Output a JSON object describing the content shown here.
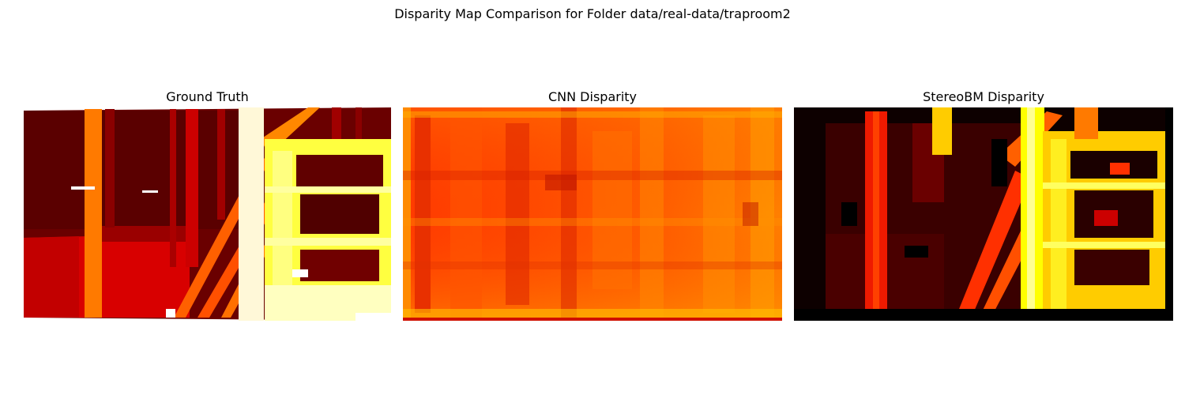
{
  "figure": {
    "title": "Disparity Map Comparison for Folder data/real-data/traproom2"
  },
  "panels": [
    {
      "title": "Ground Truth",
      "colormap": "hot"
    },
    {
      "title": "CNN Disparity",
      "colormap": "hot"
    },
    {
      "title": "StereoBM Disparity",
      "colormap": "hot"
    }
  ],
  "colors": {
    "cmap_dark": "#1a0000",
    "cmap_red": "#cc0000",
    "cmap_orange": "#ff6a00",
    "cmap_yellow": "#ffff20",
    "cmap_white": "#fffff0"
  }
}
